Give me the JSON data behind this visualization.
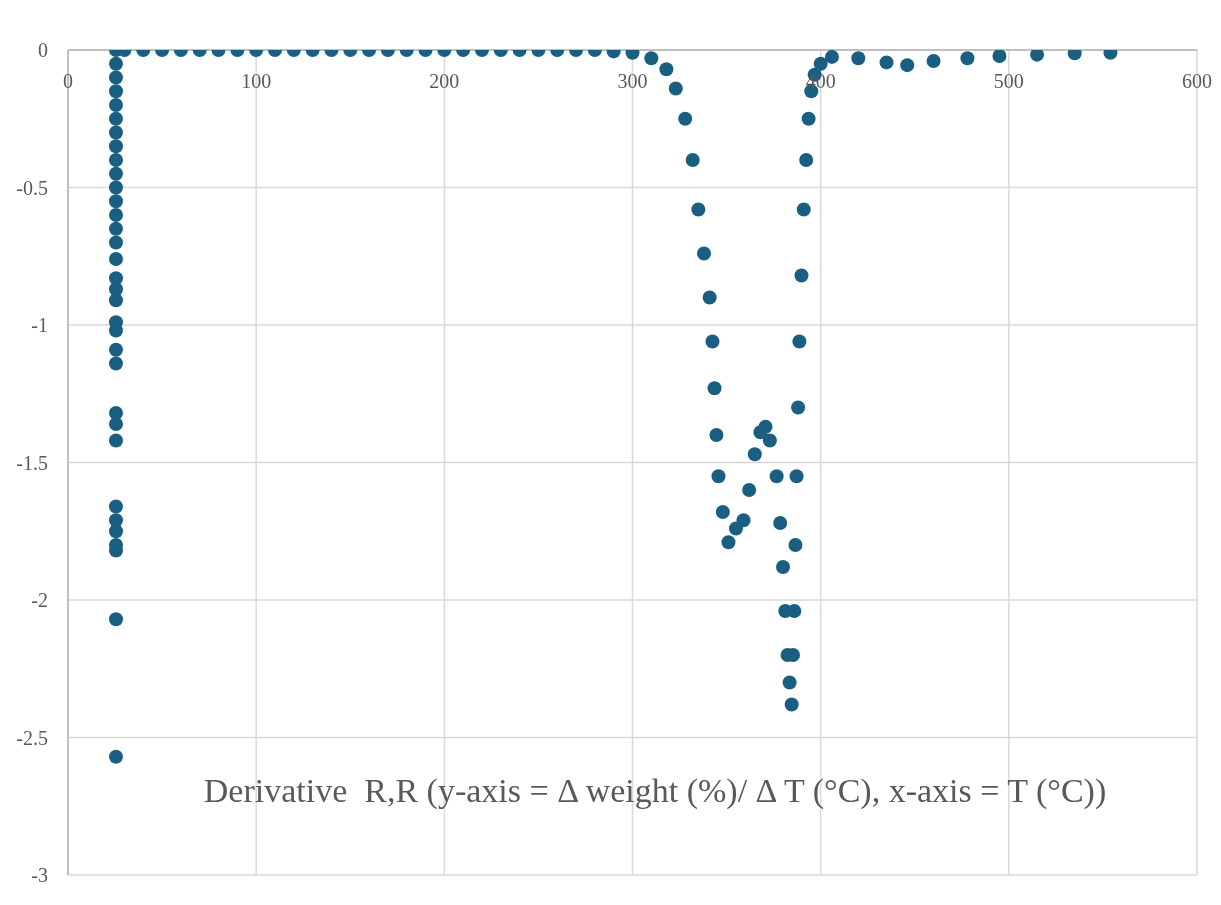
{
  "chart_data": {
    "type": "scatter",
    "title": "Derivative  R,R (y-axis = Δ weight (%)/ Δ T (°C), x-axis = T (°C))",
    "x": [
      25.5,
      25.5,
      25.5,
      25.5,
      25.5,
      25.5,
      25.5,
      25.5,
      25.5,
      25.5,
      25.5,
      25.5,
      25.5,
      25.5,
      25.5,
      25.5,
      25.5,
      25.5,
      25.5,
      25.5,
      25.5,
      25.5,
      25.5,
      25.5,
      25.5,
      25.5,
      25.5,
      25.5,
      25.5,
      25.5,
      25.5,
      25.5,
      25.5,
      30,
      40,
      50,
      60,
      70,
      80,
      90,
      100,
      110,
      120,
      130,
      140,
      150,
      160,
      170,
      180,
      190,
      200,
      210,
      220,
      230,
      240,
      250,
      260,
      270,
      280,
      290,
      300,
      310,
      318,
      323,
      328,
      332,
      335,
      338,
      341,
      342.5,
      343.6,
      344.6,
      345.7,
      348,
      351,
      355,
      359,
      362,
      365,
      368,
      370.7,
      373,
      376.6,
      378.5,
      380,
      381.2,
      382.4,
      383.5,
      384.6,
      385.3,
      386,
      386.6,
      387.2,
      388,
      388.7,
      389.8,
      391,
      392.3,
      393.6,
      395,
      396.8,
      400,
      406,
      420,
      435,
      446,
      460,
      478,
      495,
      515,
      535,
      554
    ],
    "values": [
      0,
      -0.05,
      -0.1,
      -0.15,
      -0.2,
      -0.25,
      -0.3,
      -0.35,
      -0.4,
      -0.45,
      -0.5,
      -0.55,
      -0.6,
      -0.65,
      -0.7,
      -0.76,
      -0.83,
      -0.87,
      -0.91,
      -0.99,
      -1.02,
      -1.09,
      -1.14,
      -1.32,
      -1.36,
      -1.42,
      -1.66,
      -1.71,
      -1.75,
      -1.8,
      -1.82,
      -2.07,
      -2.57,
      0,
      0,
      0,
      0,
      0,
      0,
      0,
      0,
      0,
      0,
      0,
      0,
      0,
      0,
      0,
      0,
      0,
      0,
      0,
      0,
      0,
      0,
      0,
      0,
      0,
      0,
      -0.005,
      -0.01,
      -0.03,
      -0.07,
      -0.14,
      -0.25,
      -0.4,
      -0.58,
      -0.74,
      -0.9,
      -1.06,
      -1.23,
      -1.4,
      -1.55,
      -1.68,
      -1.79,
      -1.74,
      -1.71,
      -1.6,
      -1.47,
      -1.39,
      -1.37,
      -1.42,
      -1.55,
      -1.72,
      -1.88,
      -2.04,
      -2.2,
      -2.3,
      -2.38,
      -2.2,
      -2.04,
      -1.8,
      -1.55,
      -1.3,
      -1.06,
      -0.82,
      -0.58,
      -0.4,
      -0.25,
      -0.15,
      -0.09,
      -0.05,
      -0.025,
      -0.03,
      -0.045,
      -0.055,
      -0.04,
      -0.03,
      -0.022,
      -0.017,
      -0.012,
      -0.01
    ],
    "color": "#1a5f82",
    "marker": "circle",
    "xlim": [
      0,
      600
    ],
    "xticks": [
      0,
      100,
      200,
      300,
      400,
      500,
      600
    ],
    "ylim": [
      -3,
      0
    ],
    "yticks": [
      -3,
      -2.5,
      -2,
      -1.5,
      -1,
      -0.5,
      0
    ],
    "grid": true
  }
}
